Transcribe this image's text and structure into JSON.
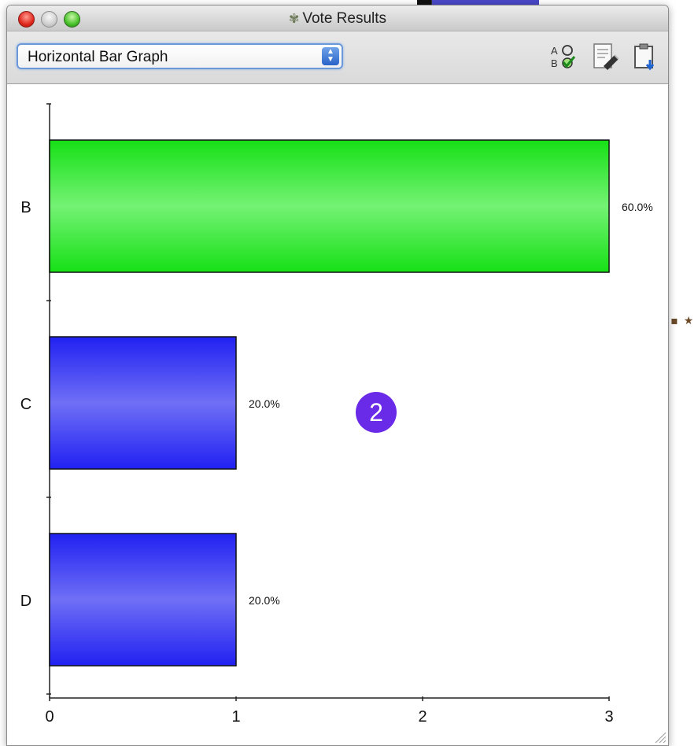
{
  "window": {
    "title": "Vote Results",
    "title_icon": "badge-icon"
  },
  "toolbar": {
    "graph_type_selected": "Horizontal Bar Graph",
    "icons": [
      "spell-check-icon",
      "document-edit-icon",
      "clipboard-copy-icon"
    ],
    "spell_icon_text_top": "A",
    "spell_icon_text_bottom": "B"
  },
  "overlay": {
    "badge_number": "2",
    "badge_color": "#6a2be8"
  },
  "chart_data": {
    "type": "bar",
    "orientation": "horizontal",
    "categories": [
      "B",
      "C",
      "D"
    ],
    "values": [
      3,
      1,
      1
    ],
    "value_labels": [
      "60.0%",
      "20.0%",
      "20.0%"
    ],
    "colors": [
      "#22ee22",
      "#2a2aff",
      "#2a2aff"
    ],
    "xlim": [
      0,
      3
    ],
    "x_ticks": [
      "0",
      "1",
      "2",
      "3"
    ],
    "title": "",
    "xlabel": "",
    "ylabel": "",
    "grid": false
  }
}
